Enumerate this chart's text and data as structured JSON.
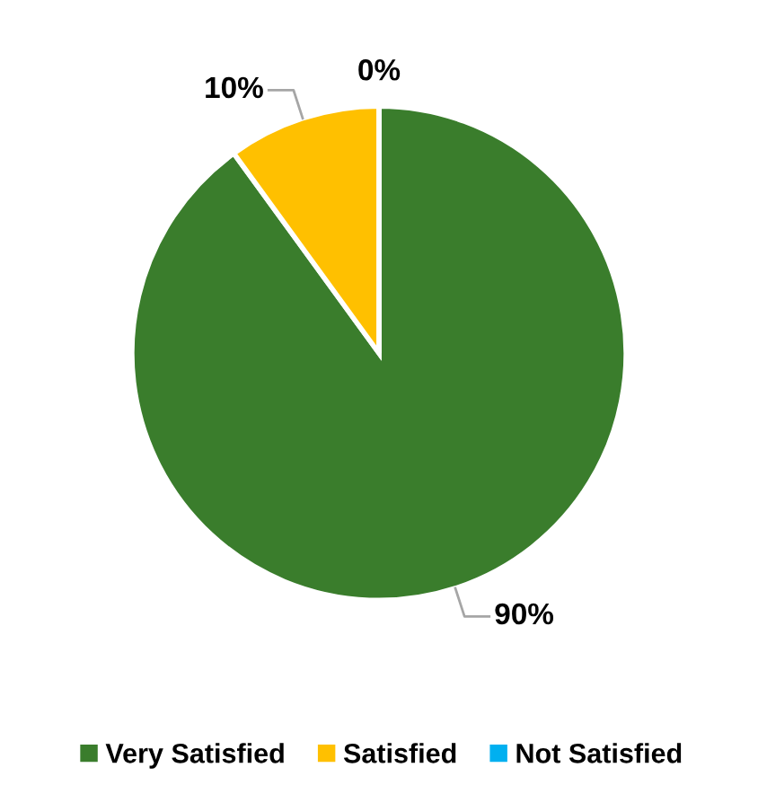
{
  "chart_data": {
    "type": "pie",
    "categories": [
      "Very Satisfied",
      "Satisfied",
      "Not Satisfied"
    ],
    "values": [
      90,
      10,
      0
    ],
    "colors": [
      "#3a7d2c",
      "#ffc000",
      "#00b0f0"
    ],
    "value_labels": [
      "90%",
      "10%",
      "0%"
    ],
    "legend": "bottom"
  }
}
